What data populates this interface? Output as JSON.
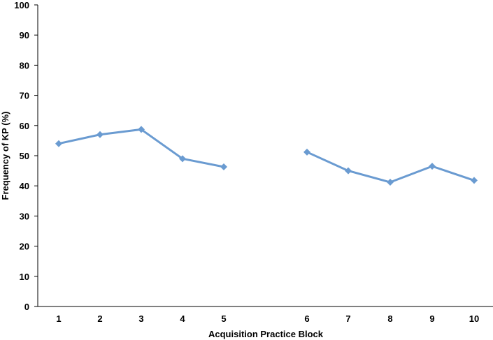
{
  "chart_data": {
    "type": "line",
    "xlabel": "Acquisition Practice Block",
    "ylabel": "Frequency of KP (%)",
    "ylim": [
      0,
      100
    ],
    "yticks": [
      0,
      10,
      20,
      30,
      40,
      50,
      60,
      70,
      80,
      90,
      100
    ],
    "categories": [
      "1",
      "2",
      "3",
      "4",
      "5",
      "6",
      "7",
      "8",
      "9",
      "10"
    ],
    "grid": false,
    "legend": "none",
    "series_color": "#6a9bd1",
    "series": [
      {
        "segment": 1,
        "x": [
          "1",
          "2",
          "3",
          "4",
          "5"
        ],
        "values": [
          54,
          57,
          58.7,
          49,
          46.3
        ]
      },
      {
        "segment": 2,
        "x": [
          "6",
          "7",
          "8",
          "9",
          "10"
        ],
        "values": [
          51.2,
          45,
          41.2,
          46.5,
          41.8
        ]
      }
    ]
  }
}
